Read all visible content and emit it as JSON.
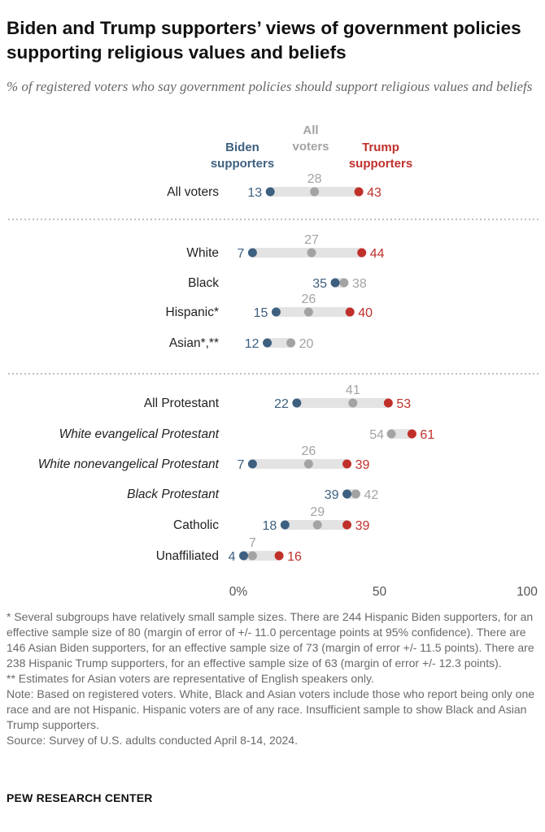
{
  "title": "Biden and Trump supporters’ views of government policies supporting religious values and beliefs",
  "subtitle": "% of registered voters who say government policies should support religious values and beliefs",
  "colors": {
    "biden": "#3e6080",
    "all": "#a3a3a3",
    "trump": "#c0302b",
    "track": "#e3e3e3",
    "text": "#222222"
  },
  "chart_data": {
    "type": "dot",
    "title": "Biden and Trump supporters’ views of government policies supporting religious values and beliefs",
    "legend": [
      {
        "key": "biden",
        "lines": [
          "Biden",
          "supporters"
        ]
      },
      {
        "key": "all",
        "lines": [
          "All",
          "voters"
        ]
      },
      {
        "key": "trump",
        "lines": [
          "Trump",
          "supporters"
        ]
      }
    ],
    "xlim": [
      0,
      100
    ],
    "ticks": [
      "0%",
      "50",
      "100"
    ],
    "tick_values": [
      0,
      50,
      100
    ],
    "groups": [
      [
        {
          "label": "All voters",
          "italic": false,
          "biden": 13,
          "all": 28,
          "trump": 43
        }
      ],
      [
        {
          "label": "White",
          "italic": false,
          "biden": 7,
          "all": 27,
          "trump": 44
        },
        {
          "label": "Black",
          "italic": false,
          "biden": 35,
          "all": 38,
          "trump": null
        },
        {
          "label": "Hispanic*",
          "italic": false,
          "biden": 15,
          "all": 26,
          "trump": 40
        },
        {
          "label": "Asian*,**",
          "italic": false,
          "biden": 12,
          "all": 20,
          "trump": null
        }
      ],
      [
        {
          "label": "All Protestant",
          "italic": false,
          "biden": 22,
          "all": 41,
          "trump": 53
        },
        {
          "label": "White evangelical Protestant",
          "italic": true,
          "biden": null,
          "all": 54,
          "trump": 61
        },
        {
          "label": "White nonevangelical Protestant",
          "italic": true,
          "biden": 7,
          "all": 26,
          "trump": 39
        },
        {
          "label": "Black Protestant",
          "italic": true,
          "biden": 39,
          "all": 42,
          "trump": null
        },
        {
          "label": "Catholic",
          "italic": false,
          "biden": 18,
          "all": 29,
          "trump": 39
        },
        {
          "label": "Unaffiliated",
          "italic": false,
          "biden": 4,
          "all": 7,
          "trump": 16
        }
      ]
    ]
  },
  "notes": [
    "* Several subgroups have relatively small sample sizes. There are 244 Hispanic Biden supporters, for an effective sample size of 80 (margin of error of +/- 11.0 percentage points at 95% confidence). There are 146 Asian Biden supporters, for an effective sample size of 73 (margin of error +/- 11.5 points). There are 238 Hispanic Trump supporters, for an effective sample size of 63 (margin of error +/- 12.3 points).",
    "** Estimates for Asian voters are representative of English speakers only.",
    "Note: Based on registered voters. White, Black and Asian voters include those who report being only one race and are not Hispanic. Hispanic voters are of any race. Insufficient sample to show Black and Asian Trump supporters.",
    "Source: Survey of U.S. adults conducted April 8-14, 2024."
  ],
  "brand": "PEW RESEARCH CENTER"
}
